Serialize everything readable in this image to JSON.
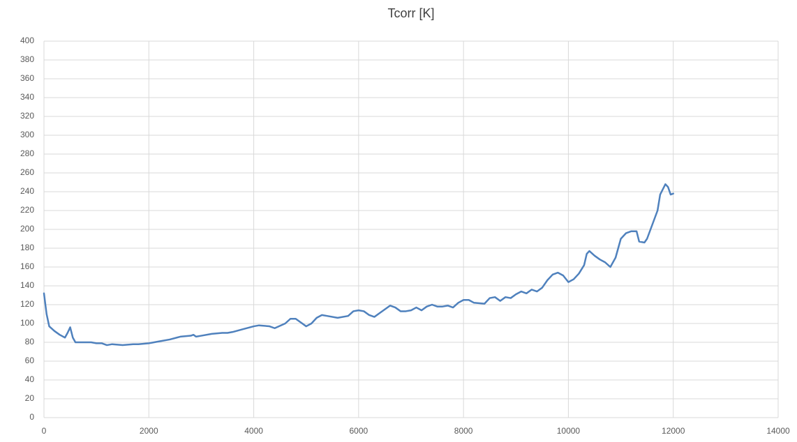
{
  "chart_data": {
    "type": "line",
    "title": "Tcorr [K]",
    "color": "#4f81bd",
    "grid": true,
    "xlim": [
      0,
      14000
    ],
    "xticks": [
      0,
      2000,
      4000,
      6000,
      8000,
      10000,
      12000,
      14000
    ],
    "ylim": [
      0,
      400
    ],
    "yticks": [
      0,
      20,
      40,
      60,
      80,
      100,
      120,
      140,
      160,
      180,
      200,
      220,
      240,
      260,
      280,
      300,
      320,
      340,
      360,
      380,
      400
    ],
    "x": [
      0,
      50,
      100,
      200,
      300,
      400,
      450,
      500,
      550,
      600,
      700,
      800,
      900,
      1000,
      1100,
      1200,
      1300,
      1500,
      1700,
      1800,
      2000,
      2100,
      2200,
      2400,
      2600,
      2800,
      2850,
      2900,
      3000,
      3200,
      3400,
      3500,
      3600,
      3800,
      4000,
      4100,
      4300,
      4400,
      4600,
      4700,
      4800,
      4900,
      5000,
      5100,
      5200,
      5300,
      5400,
      5600,
      5800,
      5900,
      6000,
      6100,
      6200,
      6300,
      6400,
      6600,
      6700,
      6800,
      6900,
      7000,
      7100,
      7200,
      7300,
      7400,
      7500,
      7600,
      7700,
      7800,
      7900,
      8000,
      8100,
      8200,
      8400,
      8500,
      8600,
      8700,
      8800,
      8900,
      9000,
      9100,
      9200,
      9300,
      9400,
      9500,
      9600,
      9700,
      9800,
      9900,
      10000,
      10100,
      10200,
      10300,
      10350,
      10400,
      10500,
      10600,
      10700,
      10800,
      10900,
      11000,
      11100,
      11200,
      11300,
      11350,
      11450,
      11500,
      11600,
      11700,
      11750,
      11850,
      11900,
      11950,
      12000
    ],
    "values": [
      132,
      110,
      97,
      92,
      88,
      85,
      90,
      96,
      85,
      80,
      80,
      80,
      80,
      79,
      79,
      77,
      78,
      77,
      78,
      78,
      79,
      80,
      81,
      83,
      86,
      87,
      88,
      86,
      87,
      89,
      90,
      90,
      91,
      94,
      97,
      98,
      97,
      95,
      100,
      105,
      105,
      101,
      97,
      100,
      106,
      109,
      108,
      106,
      108,
      113,
      114,
      113,
      109,
      107,
      111,
      119,
      117,
      113,
      113,
      114,
      117,
      114,
      118,
      120,
      118,
      118,
      119,
      117,
      122,
      125,
      125,
      122,
      121,
      127,
      128,
      124,
      128,
      127,
      131,
      134,
      132,
      136,
      134,
      138,
      146,
      152,
      154,
      151,
      144,
      147,
      153,
      162,
      174,
      177,
      172,
      168,
      165,
      160,
      170,
      190,
      196,
      198,
      198,
      187,
      186,
      190,
      205,
      220,
      237,
      248,
      245,
      237,
      238
    ]
  }
}
